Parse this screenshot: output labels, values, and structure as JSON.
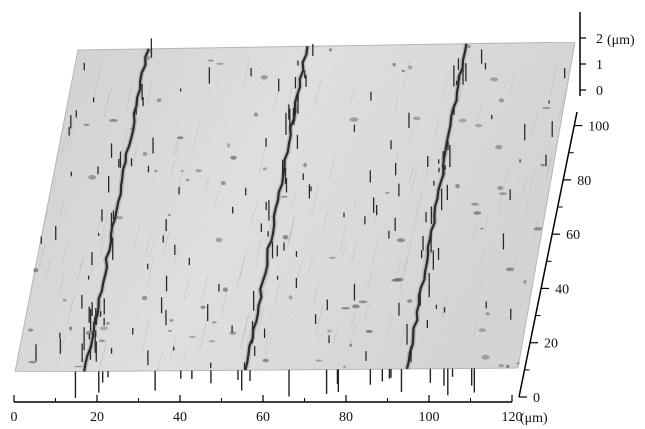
{
  "figure": {
    "type": "afm-3d-surface",
    "surface_color": "#e4e4e4",
    "groove_color": "#222222",
    "spike_color": "#333333"
  },
  "x_axis": {
    "ticks": [
      "0",
      "20",
      "40",
      "60",
      "80",
      "100",
      "120"
    ],
    "unit": "(μm)",
    "range": [
      0,
      120
    ]
  },
  "y_axis": {
    "ticks": [
      "0",
      "20",
      "40",
      "60",
      "80",
      "100"
    ],
    "range": [
      0,
      100
    ]
  },
  "z_axis": {
    "ticks": [
      "0",
      "1",
      "2"
    ],
    "unit": "(μm)",
    "range": [
      0,
      2
    ]
  }
}
